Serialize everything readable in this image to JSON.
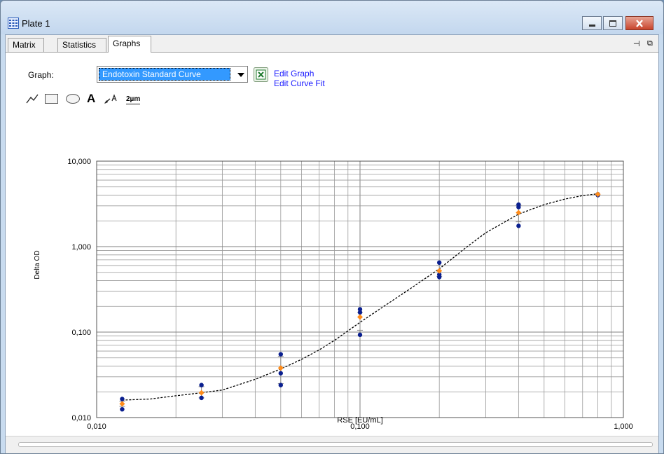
{
  "window": {
    "title": "Plate 1"
  },
  "tabs": [
    {
      "label": "Matrix"
    },
    {
      "label": "Statistics"
    },
    {
      "label": "Graphs",
      "active": true
    }
  ],
  "graph_selector": {
    "label": "Graph:",
    "value": "Endotoxin Standard Curve"
  },
  "links": {
    "edit_graph": "Edit Graph",
    "edit_curve_fit": "Edit Curve Fit"
  },
  "toolbar": {
    "text_tool": "A",
    "measure_tool": "2µm"
  },
  "icons": [
    "plate-icon",
    "minimize-icon",
    "maximize-icon",
    "close-icon",
    "pin-icon",
    "float-icon",
    "excel-icon",
    "line-tool-icon",
    "rectangle-tool-icon",
    "ellipse-tool-icon",
    "text-tool-icon",
    "arrow-text-tool-icon",
    "measure-tool-icon",
    "chevron-down-icon"
  ],
  "colors": {
    "points": "#0a1f8f",
    "means": "#ff8c1a",
    "fit": "#000000",
    "link": "#1a1aff",
    "selection": "#3399ff"
  },
  "chart_data": {
    "type": "scatter",
    "xlabel": "RSE [EU/mL]",
    "ylabel": "Delta OD",
    "x_scale": "log",
    "y_scale": "log",
    "xlim": [
      0.01,
      1
    ],
    "ylim": [
      0.01,
      10
    ],
    "x_ticks": [
      "0,010",
      "0,100",
      "1,000"
    ],
    "y_ticks": [
      "0,010",
      "0,100",
      "1,000",
      "10,000"
    ],
    "grid": true,
    "replicates": [
      {
        "x": 0.0125,
        "y": [
          0.0125,
          0.0165
        ]
      },
      {
        "x": 0.025,
        "y": [
          0.017,
          0.024
        ]
      },
      {
        "x": 0.05,
        "y": [
          0.024,
          0.033,
          0.055
        ]
      },
      {
        "x": 0.1,
        "y": [
          0.093,
          0.17,
          0.185
        ]
      },
      {
        "x": 0.2,
        "y": [
          0.44,
          0.47,
          0.65
        ]
      },
      {
        "x": 0.4,
        "y": [
          1.75,
          2.9,
          3.1
        ]
      },
      {
        "x": 0.8,
        "y": [
          4.0,
          4.1
        ]
      }
    ],
    "means": [
      {
        "x": 0.0125,
        "y": 0.0145
      },
      {
        "x": 0.025,
        "y": 0.0195
      },
      {
        "x": 0.05,
        "y": 0.038
      },
      {
        "x": 0.1,
        "y": 0.15
      },
      {
        "x": 0.2,
        "y": 0.52
      },
      {
        "x": 0.4,
        "y": 2.5
      },
      {
        "x": 0.8,
        "y": 4.1
      }
    ],
    "error_bars": [
      {
        "x": 0.0125,
        "low": 0.0135,
        "high": 0.0155
      },
      {
        "x": 0.025,
        "low": 0.017,
        "high": 0.023
      },
      {
        "x": 0.05,
        "low": 0.025,
        "high": 0.052
      },
      {
        "x": 0.1,
        "low": 0.105,
        "high": 0.17
      },
      {
        "x": 0.2,
        "low": 0.45,
        "high": 0.6
      },
      {
        "x": 0.4,
        "low": 1.95,
        "high": 3.05
      }
    ],
    "fit_curve": {
      "type": "4-parameter logistic",
      "points": [
        [
          0.0125,
          0.016
        ],
        [
          0.016,
          0.0165
        ],
        [
          0.02,
          0.018
        ],
        [
          0.025,
          0.0195
        ],
        [
          0.03,
          0.021
        ],
        [
          0.04,
          0.028
        ],
        [
          0.05,
          0.037
        ],
        [
          0.06,
          0.048
        ],
        [
          0.07,
          0.062
        ],
        [
          0.08,
          0.08
        ],
        [
          0.1,
          0.13
        ],
        [
          0.12,
          0.19
        ],
        [
          0.15,
          0.3
        ],
        [
          0.2,
          0.55
        ],
        [
          0.25,
          0.95
        ],
        [
          0.3,
          1.45
        ],
        [
          0.4,
          2.4
        ],
        [
          0.5,
          3.1
        ],
        [
          0.6,
          3.6
        ],
        [
          0.7,
          3.95
        ],
        [
          0.8,
          4.15
        ]
      ]
    }
  }
}
